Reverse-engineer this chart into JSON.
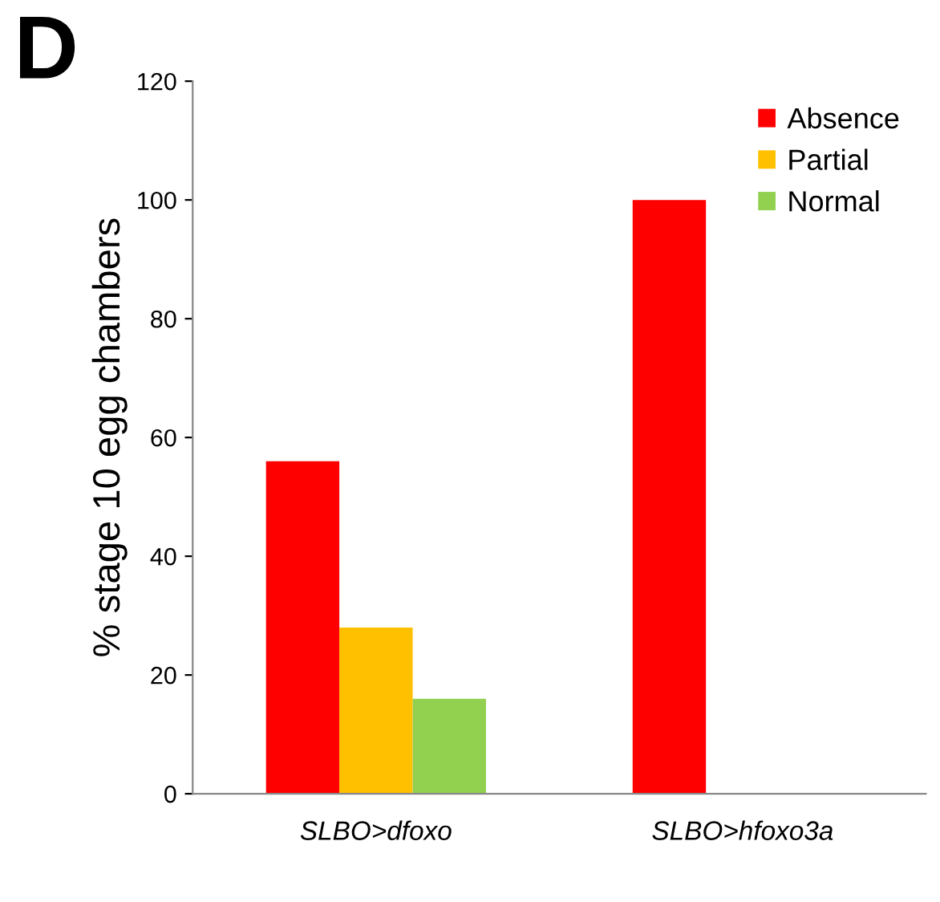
{
  "chart_data": {
    "type": "bar",
    "ylabel": "% stage 10 egg chambers",
    "categories": [
      "SLBO>dfoxo",
      "SLBO>hfoxo3a"
    ],
    "series": [
      {
        "name": "Absence",
        "color": "#ff0000",
        "values": [
          56,
          100
        ]
      },
      {
        "name": "Partial",
        "color": "#ffc000",
        "values": [
          28,
          0
        ]
      },
      {
        "name": "Normal",
        "color": "#92d050",
        "values": [
          16,
          0
        ]
      }
    ],
    "ylim": [
      0,
      120
    ],
    "yticks": [
      0,
      20,
      40,
      60,
      80,
      100,
      120
    ],
    "grid": false,
    "legend": "top right",
    "annotations": [
      "D"
    ]
  }
}
